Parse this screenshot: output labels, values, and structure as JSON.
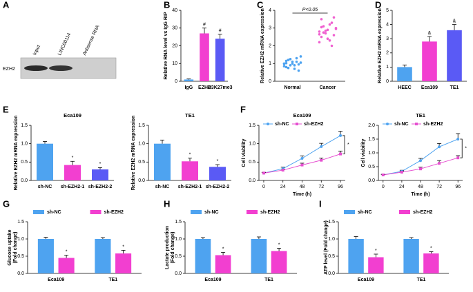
{
  "chart_data": [
    {
      "type": "blot",
      "panel": "A",
      "lanes": [
        "Input",
        "LINC00114",
        "Antisense RNA"
      ],
      "row_label": "EZH2"
    },
    {
      "type": "bar",
      "panel": "B",
      "y_label": "Relative RNA level vs IgG RIP",
      "categories": [
        "IgG",
        "EZH2",
        "H3K27me3"
      ],
      "values": [
        1,
        27,
        24
      ],
      "errors": [
        0.3,
        3,
        2.5
      ],
      "colors": [
        "#4ea3f0",
        "#f23fd0",
        "#5a5af5"
      ],
      "ylim": [
        0,
        40
      ],
      "yticks": [
        0,
        10,
        20,
        30,
        40
      ],
      "annotations": [
        "#",
        "#"
      ]
    },
    {
      "type": "dot",
      "panel": "C",
      "y_label": "Relative EZH2 mRNA expression",
      "categories": [
        "Normal",
        "Cancer"
      ],
      "values": [
        [
          1.0,
          0.8,
          1.2,
          0.9,
          1.1,
          0.7,
          1.3,
          0.95,
          1.05,
          0.85,
          1.15,
          0.75,
          1.25,
          1.0,
          0.9,
          1.1,
          0.6,
          1.4,
          0.98,
          1.02
        ],
        [
          2.8,
          2.5,
          3.1,
          2.7,
          2.9,
          2.3,
          3.3,
          2.6,
          3.0,
          2.2,
          3.5,
          2.75,
          2.85,
          2.4,
          3.2,
          2.0,
          3.6,
          2.95,
          2.65,
          3.05
        ]
      ],
      "colors": [
        "#4ea3f0",
        "#f060d0"
      ],
      "ylim": [
        0,
        4
      ],
      "yticks": [
        0,
        1,
        2,
        3,
        4
      ],
      "annotations": [
        "P<0.05"
      ]
    },
    {
      "type": "bar",
      "panel": "D",
      "y_label": "Relative EZH2 mRNA expression",
      "categories": [
        "HEEC",
        "Eca109",
        "TE1"
      ],
      "values": [
        1.0,
        2.8,
        3.6
      ],
      "errors": [
        0.15,
        0.35,
        0.4
      ],
      "colors": [
        "#4ea3f0",
        "#f23fd0",
        "#5a5af5"
      ],
      "ylim": [
        0,
        5
      ],
      "yticks": [
        0,
        1,
        2,
        3,
        4,
        5
      ],
      "annotations": [
        "&",
        "&"
      ]
    },
    {
      "type": "bar",
      "panel": "E",
      "title": "Eca109",
      "y_label": "Relative EZH2 mRNA expression",
      "categories": [
        "sh-NC",
        "sh-EZH2-1",
        "sh-EZH2-2"
      ],
      "values": [
        1.0,
        0.42,
        0.3
      ],
      "errors": [
        0.06,
        0.1,
        0.05
      ],
      "colors": [
        "#4ea3f0",
        "#f23fd0",
        "#5a5af5"
      ],
      "ylim": [
        0,
        1.5
      ],
      "yticks": [
        {
          "value": 0,
          "label": "0.0"
        },
        0.5,
        {
          "value": 1,
          "label": "1.0"
        },
        1.5
      ],
      "annotations": [
        "*",
        "*"
      ]
    },
    {
      "type": "bar",
      "title": "TE1",
      "y_label": "Relative EZH2 mRNA expression",
      "categories": [
        "sh-NC",
        "sh-EZH2-1",
        "sh-EZH2-2"
      ],
      "values": [
        1.0,
        0.52,
        0.37
      ],
      "errors": [
        0.1,
        0.09,
        0.06
      ],
      "colors": [
        "#4ea3f0",
        "#f23fd0",
        "#5a5af5"
      ],
      "ylim": [
        0,
        1.5
      ],
      "yticks": [
        {
          "value": 0,
          "label": "0.0"
        },
        0.5,
        {
          "value": 1,
          "label": "1.0"
        },
        1.5
      ],
      "annotations": [
        "*",
        "*"
      ]
    },
    {
      "type": "line",
      "panel": "F",
      "title": "Eca109",
      "x_label": "Time (h)",
      "y_label": "Cell viability",
      "x": [
        0,
        24,
        48,
        72,
        96
      ],
      "series": [
        {
          "name": "sh-NC",
          "color": "#4ea3f0",
          "values": [
            0.2,
            0.32,
            0.6,
            0.92,
            1.22
          ],
          "errors": [
            0.02,
            0.04,
            0.07,
            0.09,
            0.12
          ]
        },
        {
          "name": "sh-EZH2",
          "color": "#e64fd0",
          "values": [
            0.2,
            0.28,
            0.42,
            0.55,
            0.72
          ],
          "errors": [
            0.02,
            0.03,
            0.05,
            0.06,
            0.08
          ]
        }
      ],
      "xlim": [
        -6,
        102
      ],
      "xticks": [
        0,
        24,
        48,
        72,
        96
      ],
      "ylim": [
        0,
        1.5
      ],
      "yticks": [
        {
          "value": 0,
          "label": "0.0"
        },
        0.5,
        {
          "value": 1,
          "label": "1.0"
        },
        1.5
      ],
      "annotations": [
        "*"
      ]
    },
    {
      "type": "line",
      "title": "TE1",
      "x_label": "Time (h)",
      "y_label": "Cell viability",
      "x": [
        0,
        24,
        48,
        72,
        96
      ],
      "series": [
        {
          "name": "sh-NC",
          "color": "#4ea3f0",
          "values": [
            0.2,
            0.33,
            0.72,
            1.22,
            1.5
          ],
          "errors": [
            0.02,
            0.04,
            0.08,
            0.12,
            0.2
          ]
        },
        {
          "name": "sh-EZH2",
          "color": "#e64fd0",
          "values": [
            0.2,
            0.3,
            0.42,
            0.62,
            0.82
          ],
          "errors": [
            0.02,
            0.03,
            0.06,
            0.1,
            0.08
          ]
        }
      ],
      "xlim": [
        -6,
        102
      ],
      "xticks": [
        0,
        24,
        48,
        72,
        96
      ],
      "ylim": [
        0,
        2
      ],
      "yticks": [
        {
          "value": 0,
          "label": "0.0"
        },
        0.5,
        {
          "value": 1,
          "label": "1.0"
        },
        1.5,
        {
          "value": 2,
          "label": "2.0"
        }
      ],
      "annotations": [
        "*"
      ]
    },
    {
      "type": "grouped_bar",
      "panel": "G",
      "y_label": [
        "Glucose uptake",
        "(Fold change)"
      ],
      "categories": [
        "Eca109",
        "TE1"
      ],
      "series": [
        {
          "name": "sh-NC",
          "color": "#4ea3f0",
          "values": [
            1.0,
            1.0
          ],
          "errors": [
            0.05,
            0.04
          ]
        },
        {
          "name": "sh-EZH2",
          "color": "#f23fd0",
          "values": [
            0.45,
            0.58
          ],
          "errors": [
            0.08,
            0.09
          ]
        }
      ],
      "ylim": [
        0,
        1.5
      ],
      "yticks": [
        {
          "value": 0,
          "label": "0.0"
        },
        0.5,
        {
          "value": 1,
          "label": "1.0"
        },
        1.5
      ],
      "annotations": [
        "*",
        "*"
      ]
    },
    {
      "type": "grouped_bar",
      "panel": "H",
      "y_label": [
        "Lactate production",
        "(Fold change)"
      ],
      "categories": [
        "Eca109",
        "TE1"
      ],
      "series": [
        {
          "name": "sh-NC",
          "color": "#4ea3f0",
          "values": [
            1.0,
            1.0
          ],
          "errors": [
            0.04,
            0.06
          ]
        },
        {
          "name": "sh-EZH2",
          "color": "#f23fd0",
          "values": [
            0.53,
            0.65
          ],
          "errors": [
            0.08,
            0.08
          ]
        }
      ],
      "ylim": [
        0,
        1.5
      ],
      "yticks": [
        {
          "value": 0,
          "label": "0.0"
        },
        0.5,
        {
          "value": 1,
          "label": "1.0"
        },
        1.5
      ],
      "annotations": [
        "*",
        "*"
      ]
    },
    {
      "type": "grouped_bar",
      "panel": "I",
      "y_label": [
        "ATP level (Fold change)"
      ],
      "categories": [
        "Eca109",
        "TE1"
      ],
      "series": [
        {
          "name": "sh-NC",
          "color": "#4ea3f0",
          "values": [
            1.0,
            1.0
          ],
          "errors": [
            0.07,
            0.04
          ]
        },
        {
          "name": "sh-EZH2",
          "color": "#f23fd0",
          "values": [
            0.47,
            0.58
          ],
          "errors": [
            0.09,
            0.05
          ]
        }
      ],
      "ylim": [
        0,
        1.5
      ],
      "yticks": [
        {
          "value": 0,
          "label": "0.0"
        },
        0.5,
        {
          "value": 1,
          "label": "1.0"
        },
        1.5
      ],
      "annotations": [
        "*",
        "*"
      ]
    }
  ]
}
